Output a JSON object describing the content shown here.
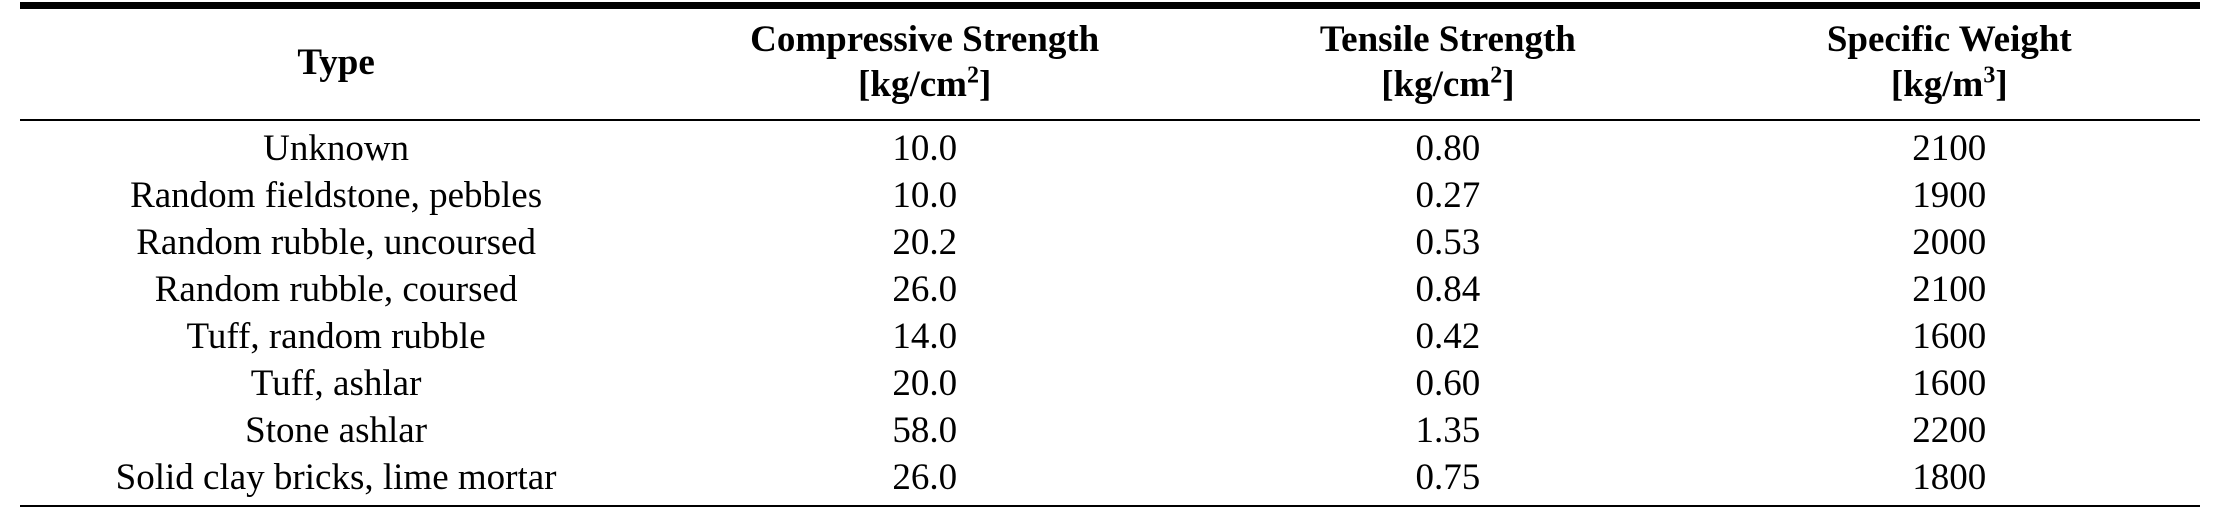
{
  "table": {
    "columns": [
      {
        "label": "Type",
        "unit_prefix": "",
        "unit_sup": "",
        "unit_suffix": ""
      },
      {
        "label": "Compressive Strength",
        "unit_prefix": "[kg/cm",
        "unit_sup": "2",
        "unit_suffix": "]"
      },
      {
        "label": "Tensile Strength",
        "unit_prefix": "[kg/cm",
        "unit_sup": "2",
        "unit_suffix": "]"
      },
      {
        "label": "Specific Weight",
        "unit_prefix": "[kg/m",
        "unit_sup": "3",
        "unit_suffix": "]"
      }
    ],
    "rows": [
      {
        "type": "Unknown",
        "compressive": "10.0",
        "tensile": "0.80",
        "specific_weight": "2100"
      },
      {
        "type": "Random fieldstone, pebbles",
        "compressive": "10.0",
        "tensile": "0.27",
        "specific_weight": "1900"
      },
      {
        "type": "Random rubble, uncoursed",
        "compressive": "20.2",
        "tensile": "0.53",
        "specific_weight": "2000"
      },
      {
        "type": "Random rubble, coursed",
        "compressive": "26.0",
        "tensile": "0.84",
        "specific_weight": "2100"
      },
      {
        "type": "Tuff, random rubble",
        "compressive": "14.0",
        "tensile": "0.42",
        "specific_weight": "1600"
      },
      {
        "type": "Tuff, ashlar",
        "compressive": "20.0",
        "tensile": "0.60",
        "specific_weight": "1600"
      },
      {
        "type": "Stone ashlar",
        "compressive": "58.0",
        "tensile": "1.35",
        "specific_weight": "2200"
      },
      {
        "type": "Solid clay bricks, lime mortar",
        "compressive": "26.0",
        "tensile": "0.75",
        "specific_weight": "1800"
      }
    ],
    "colors": {
      "text": "#000000",
      "background": "#ffffff",
      "rule": "#000000"
    }
  }
}
